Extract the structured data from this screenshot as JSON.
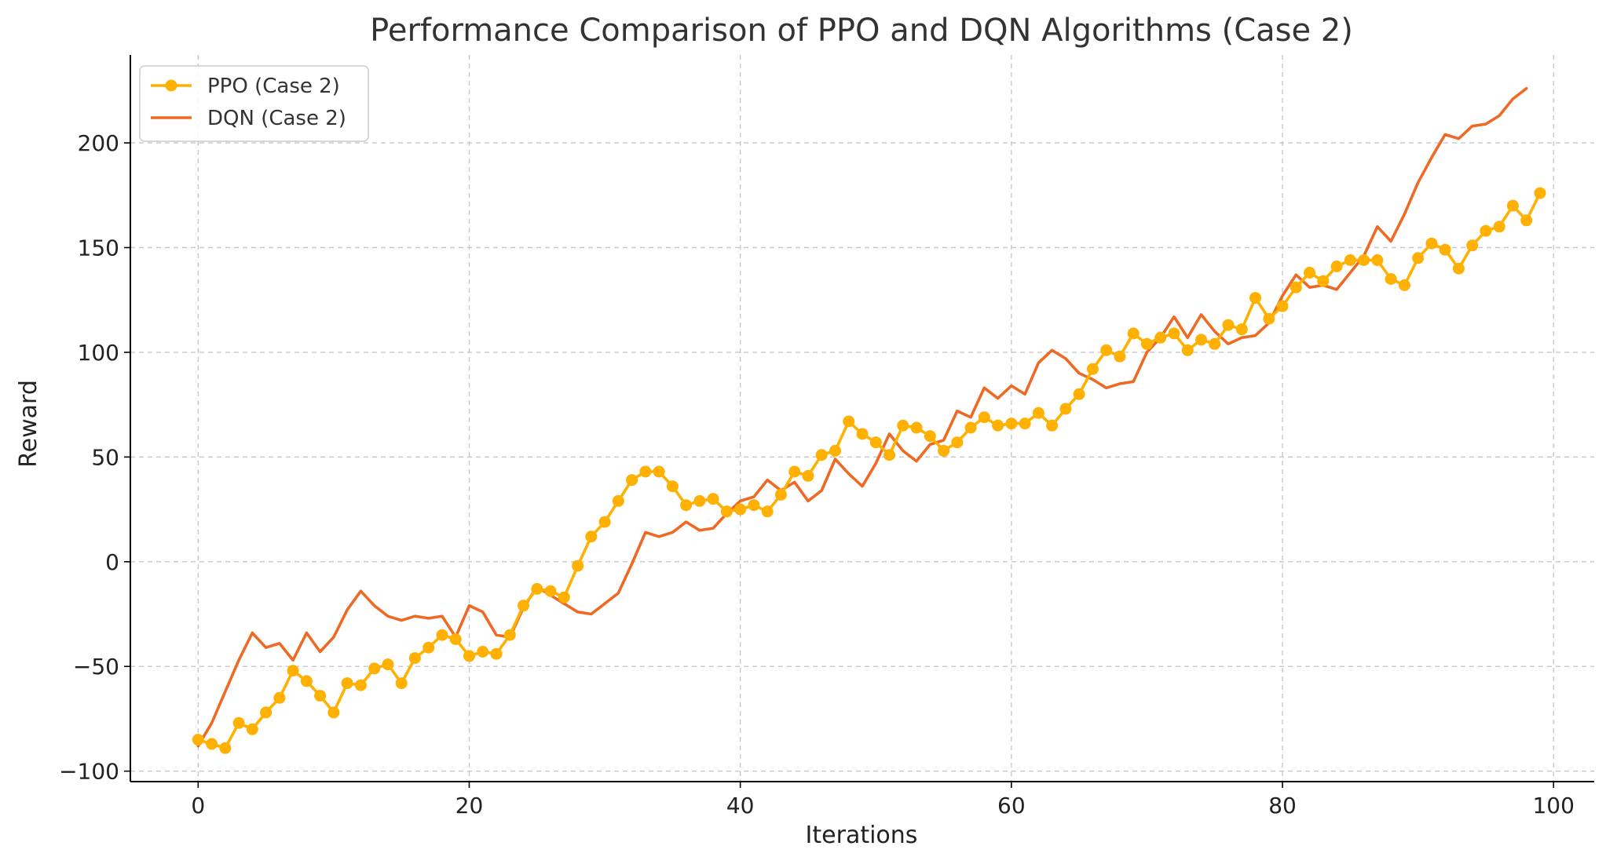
{
  "chart_data": {
    "type": "line",
    "title": "Performance Comparison of PPO and DQN Algorithms (Case 2)",
    "xlabel": "Iterations",
    "ylabel": "Reward",
    "xlim": [
      -5,
      103
    ],
    "ylim": [
      -105,
      242
    ],
    "xticks": [
      0,
      20,
      40,
      60,
      80,
      100
    ],
    "yticks": [
      -100,
      -50,
      0,
      50,
      100,
      150,
      200
    ],
    "tick_labels_x": [
      "0",
      "20",
      "40",
      "60",
      "80",
      "100"
    ],
    "tick_labels_y": [
      "−100",
      "−50",
      "0",
      "50",
      "100",
      "150",
      "200"
    ],
    "grid": true,
    "legend_position": "top-left",
    "series": [
      {
        "name": "PPO (Case 2)",
        "color": "#FFB000",
        "marker": "circle",
        "x": [
          0,
          1,
          2,
          3,
          4,
          5,
          6,
          7,
          8,
          9,
          10,
          11,
          12,
          13,
          14,
          15,
          16,
          17,
          18,
          19,
          20,
          21,
          22,
          23,
          24,
          25,
          26,
          27,
          28,
          29,
          30,
          31,
          32,
          33,
          34,
          35,
          36,
          37,
          38,
          39,
          40,
          41,
          42,
          43,
          44,
          45,
          46,
          47,
          48,
          49,
          50,
          51,
          52,
          53,
          54,
          55,
          56,
          57,
          58,
          59,
          60,
          61,
          62,
          63,
          64,
          65,
          66,
          67,
          68,
          69,
          70,
          71,
          72,
          73,
          74,
          75,
          76,
          77,
          78,
          79,
          80,
          81,
          82,
          83,
          84,
          85,
          86,
          87,
          88,
          89,
          90,
          91,
          92,
          93,
          94,
          95,
          96,
          97,
          98,
          99
        ],
        "y": [
          -85,
          -87,
          -89,
          -77,
          -80,
          -72,
          -65,
          -52,
          -57,
          -64,
          -72,
          -58,
          -59,
          -51,
          -49,
          -58,
          -46,
          -41,
          -35,
          -37,
          -45,
          -43,
          -44,
          -35,
          -21,
          -13,
          -14,
          -17,
          -2,
          12,
          19,
          29,
          39,
          43,
          43,
          36,
          27,
          29,
          30,
          24,
          25,
          27,
          24,
          32,
          43,
          41,
          51,
          53,
          67,
          61,
          57,
          51,
          65,
          64,
          60,
          53,
          57,
          64,
          69,
          65,
          66,
          66,
          71,
          65,
          73,
          80,
          92,
          101,
          98,
          109,
          104,
          107,
          109,
          101,
          106,
          104,
          113,
          111,
          126,
          116,
          122,
          131,
          138,
          134,
          141,
          144,
          144,
          144,
          135,
          132,
          145,
          152,
          149,
          140,
          151,
          158,
          160,
          170,
          163,
          176
        ]
      },
      {
        "name": "DQN (Case 2)",
        "color": "#EE6A24",
        "marker": "none",
        "x": [
          0,
          1,
          2,
          3,
          4,
          5,
          6,
          7,
          8,
          9,
          10,
          11,
          12,
          13,
          14,
          15,
          16,
          17,
          18,
          19,
          20,
          21,
          22,
          23,
          24,
          25,
          26,
          27,
          28,
          29,
          30,
          31,
          32,
          33,
          34,
          35,
          36,
          37,
          38,
          39,
          40,
          41,
          42,
          43,
          44,
          45,
          46,
          47,
          48,
          49,
          50,
          51,
          52,
          53,
          54,
          55,
          56,
          57,
          58,
          59,
          60,
          61,
          62,
          63,
          64,
          65,
          66,
          67,
          68,
          69,
          70,
          71,
          72,
          73,
          74,
          75,
          76,
          77,
          78,
          79,
          80,
          81,
          82,
          83,
          84,
          85,
          86,
          87,
          88,
          89,
          90,
          91,
          92,
          93,
          94,
          95,
          96,
          97,
          98
        ],
        "y": [
          -88,
          -77,
          -62,
          -47,
          -34,
          -41,
          -39,
          -47,
          -34,
          -43,
          -36,
          -23,
          -14,
          -21,
          -26,
          -28,
          -26,
          -27,
          -26,
          -36,
          -21,
          -24,
          -35,
          -36,
          -22,
          -12,
          -16,
          -20,
          -24,
          -25,
          -20,
          -15,
          -1,
          14,
          12,
          14,
          19,
          15,
          16,
          23,
          29,
          31,
          39,
          34,
          38,
          29,
          34,
          49,
          42,
          36,
          47,
          61,
          53,
          48,
          56,
          58,
          72,
          69,
          83,
          78,
          84,
          80,
          95,
          101,
          97,
          90,
          87,
          83,
          85,
          86,
          100,
          107,
          117,
          107,
          118,
          110,
          104,
          107,
          108,
          114,
          127,
          137,
          131,
          132,
          130,
          138,
          146,
          160,
          153,
          166,
          181,
          193,
          204,
          202,
          208,
          209,
          213,
          221,
          226
        ]
      }
    ]
  }
}
